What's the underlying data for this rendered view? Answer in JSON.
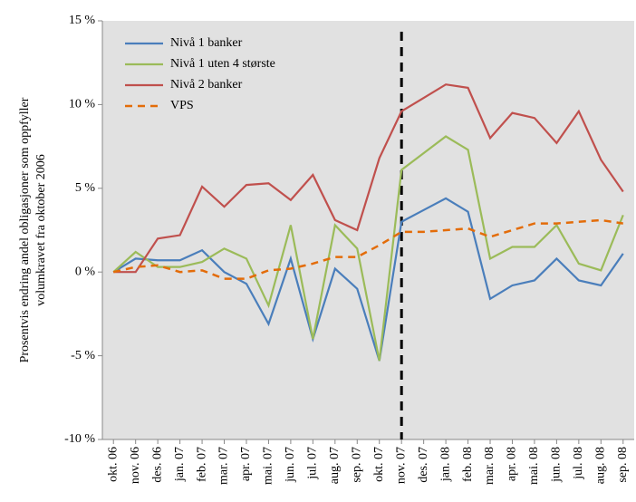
{
  "chart_data": {
    "type": "line",
    "ylabel": [
      "Prosentvis endring andel obligasjoner som oppfyller",
      "volumkravet fra oktober 2006"
    ],
    "categories": [
      "okt. 06",
      "nov. 06",
      "des. 06",
      "jan. 07",
      "feb. 07",
      "mar. 07",
      "apr. 07",
      "mai. 07",
      "jun. 07",
      "jul. 07",
      "aug. 07",
      "sep. 07",
      "okt. 07",
      "nov. 07",
      "des. 07",
      "jan. 08",
      "feb. 08",
      "mar. 08",
      "apr. 08",
      "mai. 08",
      "jun. 08",
      "jul. 08",
      "aug. 08",
      "sep. 08"
    ],
    "series": [
      {
        "name": "Nivå 1 banker",
        "color": "#4a7ebb",
        "dashed": false,
        "values": [
          0,
          0.8,
          0.7,
          0.7,
          1.3,
          0,
          -0.7,
          -3.1,
          0.8,
          -4,
          0.2,
          -1,
          -5.3,
          3,
          3.7,
          4.4,
          3.6,
          -1.6,
          -0.8,
          -0.5,
          0.8,
          -0.5,
          -0.8,
          1.1
        ]
      },
      {
        "name": "Nivå 1 uten 4 største",
        "color": "#9bbb59",
        "dashed": false,
        "values": [
          0,
          1.2,
          0.3,
          0.3,
          0.6,
          1.4,
          0.8,
          -2,
          2.8,
          -4,
          2.8,
          1.4,
          -5.3,
          6.1,
          7.1,
          8.1,
          7.3,
          0.8,
          1.5,
          1.5,
          2.8,
          0.5,
          0.1,
          3.4
        ]
      },
      {
        "name": "Nivå 2 banker",
        "color": "#c0504d",
        "dashed": false,
        "values": [
          0,
          0,
          2,
          2.2,
          5.1,
          3.9,
          5.2,
          5.3,
          4.3,
          5.8,
          3.1,
          2.5,
          6.8,
          9.6,
          10.4,
          11.2,
          11,
          8,
          9.5,
          9.2,
          7.7,
          9.6,
          6.7,
          4.8
        ]
      },
      {
        "name": "VPS",
        "color": "#e36c09",
        "dashed": true,
        "values": [
          0,
          0.3,
          0.4,
          0,
          0.1,
          -0.4,
          -0.4,
          0.1,
          0.2,
          0.5,
          0.9,
          0.9,
          1.6,
          2.4,
          2.4,
          2.5,
          2.6,
          2.1,
          2.5,
          2.9,
          2.9,
          3,
          3.1,
          2.9
        ]
      }
    ],
    "ylim": [
      -10,
      15
    ],
    "yticks": [
      {
        "value": -10,
        "label": "-10 %"
      },
      {
        "value": -5,
        "label": "-5 %"
      },
      {
        "value": 0,
        "label": "0 %"
      },
      {
        "value": 5,
        "label": "5 %"
      },
      {
        "value": 10,
        "label": "10 %"
      },
      {
        "value": 15,
        "label": "15 %"
      }
    ],
    "vline_category": "nov. 07",
    "legend": "upper left"
  }
}
